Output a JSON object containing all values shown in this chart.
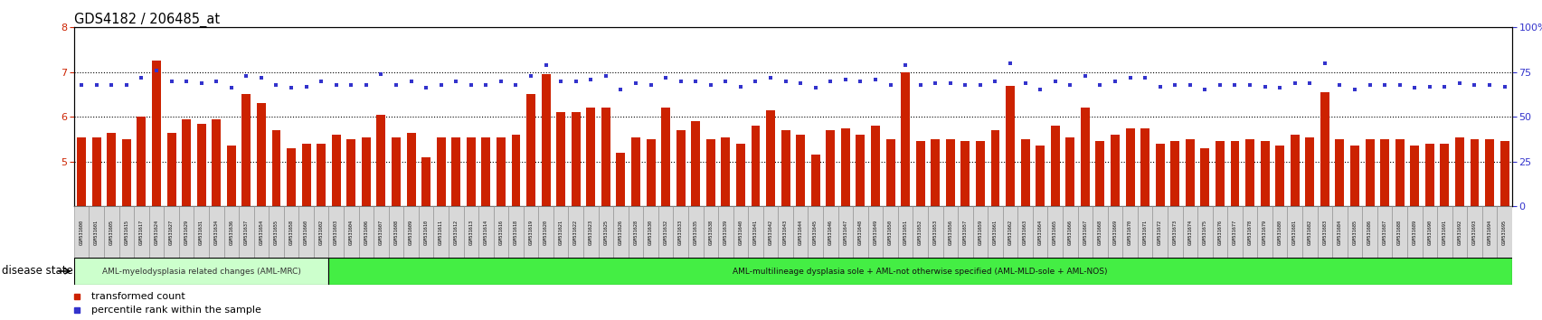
{
  "title": "GDS4182 / 206485_at",
  "samples": [
    "GSM531600",
    "GSM531601",
    "GSM531605",
    "GSM531615",
    "GSM531617",
    "GSM531624",
    "GSM531627",
    "GSM531629",
    "GSM531631",
    "GSM531634",
    "GSM531636",
    "GSM531637",
    "GSM531654",
    "GSM531655",
    "GSM531658",
    "GSM531660",
    "GSM531602",
    "GSM531603",
    "GSM531604",
    "GSM531606",
    "GSM531607",
    "GSM531608",
    "GSM531609",
    "GSM531610",
    "GSM531611",
    "GSM531612",
    "GSM531613",
    "GSM531614",
    "GSM531616",
    "GSM531618",
    "GSM531619",
    "GSM531620",
    "GSM531621",
    "GSM531622",
    "GSM531623",
    "GSM531625",
    "GSM531626",
    "GSM531628",
    "GSM531630",
    "GSM531632",
    "GSM531633",
    "GSM531635",
    "GSM531638",
    "GSM531639",
    "GSM531640",
    "GSM531641",
    "GSM531642",
    "GSM531643",
    "GSM531644",
    "GSM531645",
    "GSM531646",
    "GSM531647",
    "GSM531648",
    "GSM531649",
    "GSM531650",
    "GSM531651",
    "GSM531652",
    "GSM531653",
    "GSM531656",
    "GSM531657",
    "GSM531659",
    "GSM531661",
    "GSM531662",
    "GSM531663",
    "GSM531664",
    "GSM531665",
    "GSM531666",
    "GSM531667",
    "GSM531668",
    "GSM531669",
    "GSM531670",
    "GSM531671",
    "GSM531672",
    "GSM531673",
    "GSM531674",
    "GSM531675",
    "GSM531676",
    "GSM531677",
    "GSM531678",
    "GSM531679",
    "GSM531680",
    "GSM531681",
    "GSM531682",
    "GSM531683",
    "GSM531684",
    "GSM531685",
    "GSM531686",
    "GSM531687",
    "GSM531688",
    "GSM531689",
    "GSM531690",
    "GSM531691",
    "GSM531692",
    "GSM531693",
    "GSM531694",
    "GSM531695"
  ],
  "transformed_count": [
    5.55,
    5.55,
    5.65,
    5.5,
    6.0,
    7.25,
    5.65,
    5.95,
    5.85,
    5.95,
    5.35,
    6.5,
    6.3,
    5.7,
    5.3,
    5.4,
    5.4,
    5.6,
    5.5,
    5.55,
    6.05,
    5.55,
    5.65,
    5.1,
    5.55,
    5.55,
    5.55,
    5.55,
    5.55,
    5.6,
    6.5,
    6.95,
    6.1,
    6.1,
    6.2,
    6.2,
    5.2,
    5.55,
    5.5,
    6.2,
    5.7,
    5.9,
    5.5,
    5.55,
    5.4,
    5.8,
    6.15,
    5.7,
    5.6,
    5.15,
    5.7,
    5.75,
    5.6,
    5.8,
    5.5,
    7.0,
    5.45,
    5.5,
    5.5,
    5.45,
    5.45,
    5.7,
    6.7,
    5.5,
    5.35,
    5.8,
    5.55,
    6.2,
    5.45,
    5.6,
    5.75,
    5.75,
    5.4,
    5.45,
    5.5,
    5.3,
    5.45,
    5.45,
    5.5,
    5.45,
    5.35,
    5.6,
    5.55,
    6.55,
    5.5,
    5.35,
    5.5,
    5.5,
    5.5,
    5.35,
    5.4,
    5.4,
    5.55,
    5.5,
    5.5,
    5.45
  ],
  "percentile_rank": [
    68,
    68,
    68,
    68,
    72,
    76,
    70,
    70,
    69,
    70,
    66,
    73,
    72,
    68,
    66,
    67,
    70,
    68,
    68,
    68,
    74,
    68,
    70,
    66,
    68,
    70,
    68,
    68,
    70,
    68,
    73,
    79,
    70,
    70,
    71,
    73,
    65,
    69,
    68,
    72,
    70,
    70,
    68,
    70,
    67,
    70,
    72,
    70,
    69,
    66,
    70,
    71,
    70,
    71,
    68,
    79,
    68,
    69,
    69,
    68,
    68,
    70,
    80,
    69,
    65,
    70,
    68,
    73,
    68,
    70,
    72,
    72,
    67,
    68,
    68,
    65,
    68,
    68,
    68,
    67,
    66,
    69,
    69,
    80,
    68,
    65,
    68,
    68,
    68,
    66,
    67,
    67,
    69,
    68,
    68,
    67
  ],
  "n_aml_mrc": 17,
  "ylim_left": [
    4.0,
    8.0
  ],
  "ylim_right": [
    0,
    100
  ],
  "yticks_left": [
    5,
    6,
    7,
    8
  ],
  "yticks_right": [
    0,
    25,
    50,
    75,
    100
  ],
  "bar_color": "#cc2200",
  "dot_color": "#3333cc",
  "aml_mrc_color": "#ccffcc",
  "aml_mld_color": "#44ee44",
  "disease_label_mrc": "AML-myelodysplasia related changes (AML-MRC)",
  "disease_label_mld": "AML-multilineage dysplasia sole + AML-not otherwise specified (AML-MLD-sole + AML-NOS)",
  "legend_bar": "transformed count",
  "legend_dot": "percentile rank within the sample",
  "xlabel_disease": "disease state",
  "tick_color_left": "#cc2200",
  "tick_color_right": "#3333cc"
}
